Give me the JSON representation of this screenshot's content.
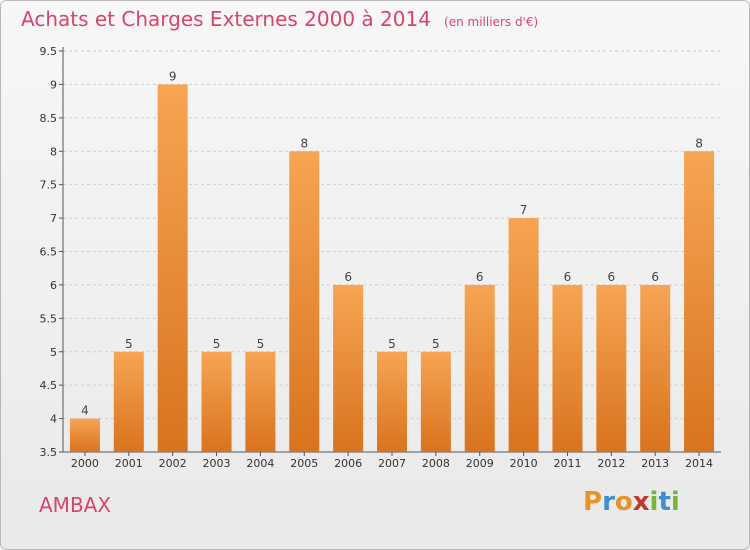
{
  "header": {
    "title": "Achats et Charges Externes 2000 à 2014",
    "subtitle": "(en milliers d'€)"
  },
  "footer": {
    "commune": "AMBAX",
    "brand": "Proxiti",
    "brand_colors": [
      "#e8932a",
      "#3f8fd0",
      "#e8932a",
      "#c0392b",
      "#7ab33b",
      "#3f8fd0",
      "#7ab33b"
    ]
  },
  "colors": {
    "bar_top": "#f6a553",
    "bar_bottom": "#d9731e",
    "accent": "#d8456a",
    "grid": "#cfcfcf"
  },
  "chart_data": {
    "type": "bar",
    "title": "Achats et Charges Externes 2000 à 2014",
    "subtitle": "(en milliers d'€)",
    "categories": [
      "2000",
      "2001",
      "2002",
      "2003",
      "2004",
      "2005",
      "2006",
      "2007",
      "2008",
      "2009",
      "2010",
      "2011",
      "2012",
      "2013",
      "2014"
    ],
    "values": [
      4,
      5,
      9,
      5,
      5,
      8,
      6,
      5,
      5,
      6,
      7,
      6,
      6,
      6,
      8
    ],
    "data_labels": [
      "4",
      "5",
      "9",
      "5",
      "5",
      "8",
      "6",
      "5",
      "5",
      "6",
      "7",
      "6",
      "6",
      "6",
      "8"
    ],
    "ylim": [
      3.5,
      9.5
    ],
    "yticks": [
      3.5,
      4,
      4.5,
      5,
      5.5,
      6,
      6.5,
      7,
      7.5,
      8,
      8.5,
      9,
      9.5
    ],
    "ytick_labels": [
      "3.5",
      "4",
      "4.5",
      "5",
      "5.5",
      "6",
      "6.5",
      "7",
      "7.5",
      "8",
      "8.5",
      "9",
      "9.5"
    ],
    "grid": true,
    "xlabel": "",
    "ylabel": ""
  }
}
